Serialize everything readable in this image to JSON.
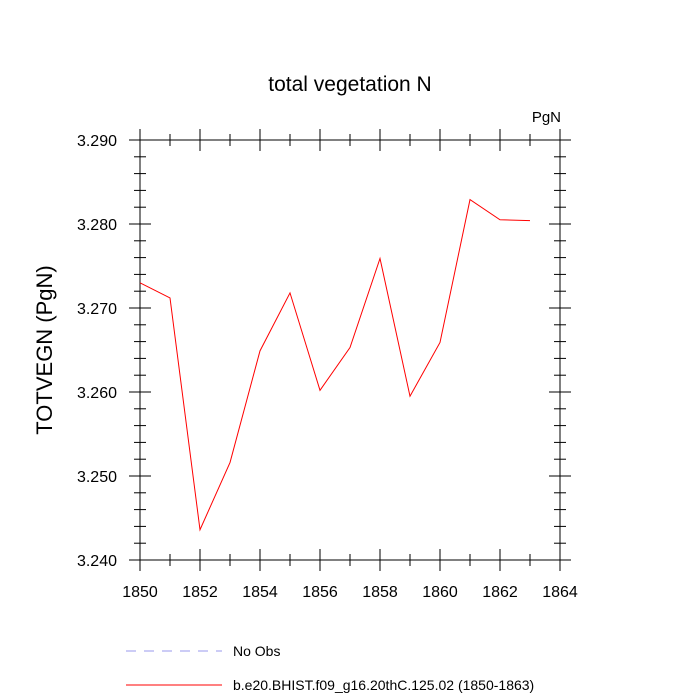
{
  "chart_data": {
    "type": "line",
    "title": "total vegetation N",
    "units_label": "PgN",
    "ylabel": "TOTVEGN  (PgN)",
    "xlabel": "",
    "xlim": [
      1850,
      1864
    ],
    "ylim": [
      3.24,
      3.29
    ],
    "x_ticks": [
      "1850",
      "1852",
      "1854",
      "1856",
      "1858",
      "1860",
      "1862",
      "1864"
    ],
    "y_ticks": [
      "3.240",
      "3.250",
      "3.260",
      "3.270",
      "3.280",
      "3.290"
    ],
    "grid": false,
    "series": [
      {
        "name": "b.e20.BHIST.f09_g16.20thC.125.02 (1850-1863)",
        "color": "#ff0000",
        "x": [
          1850,
          1851,
          1852,
          1853,
          1854,
          1855,
          1856,
          1857,
          1858,
          1859,
          1860,
          1861,
          1862,
          1863
        ],
        "y": [
          3.273,
          3.2712,
          3.2436,
          3.2516,
          3.2649,
          3.2718,
          3.2602,
          3.2653,
          3.2759,
          3.2595,
          3.2659,
          3.2829,
          3.2805,
          3.2804
        ]
      },
      {
        "name": "No Obs",
        "color": "#9999ee",
        "dashed": true,
        "x": [],
        "y": []
      }
    ],
    "legend_position": "bottom-left"
  }
}
